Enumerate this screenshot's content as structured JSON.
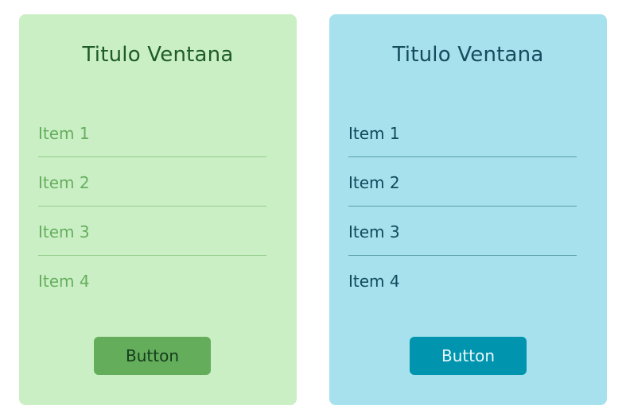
{
  "panels": [
    {
      "title": "Titulo Ventana",
      "items": [
        "Item 1",
        "Item 2",
        "Item 3",
        "Item 4"
      ],
      "button_label": "Button",
      "colors": {
        "background": "#cbefc5",
        "text": "#66ae5e",
        "button": "#64ad5b"
      }
    },
    {
      "title": "Titulo Ventana",
      "items": [
        "Item 1",
        "Item 2",
        "Item 3",
        "Item 4"
      ],
      "button_label": "Button",
      "colors": {
        "background": "#a6e1ed",
        "text": "#114a5d",
        "button": "#0094ae"
      }
    }
  ]
}
